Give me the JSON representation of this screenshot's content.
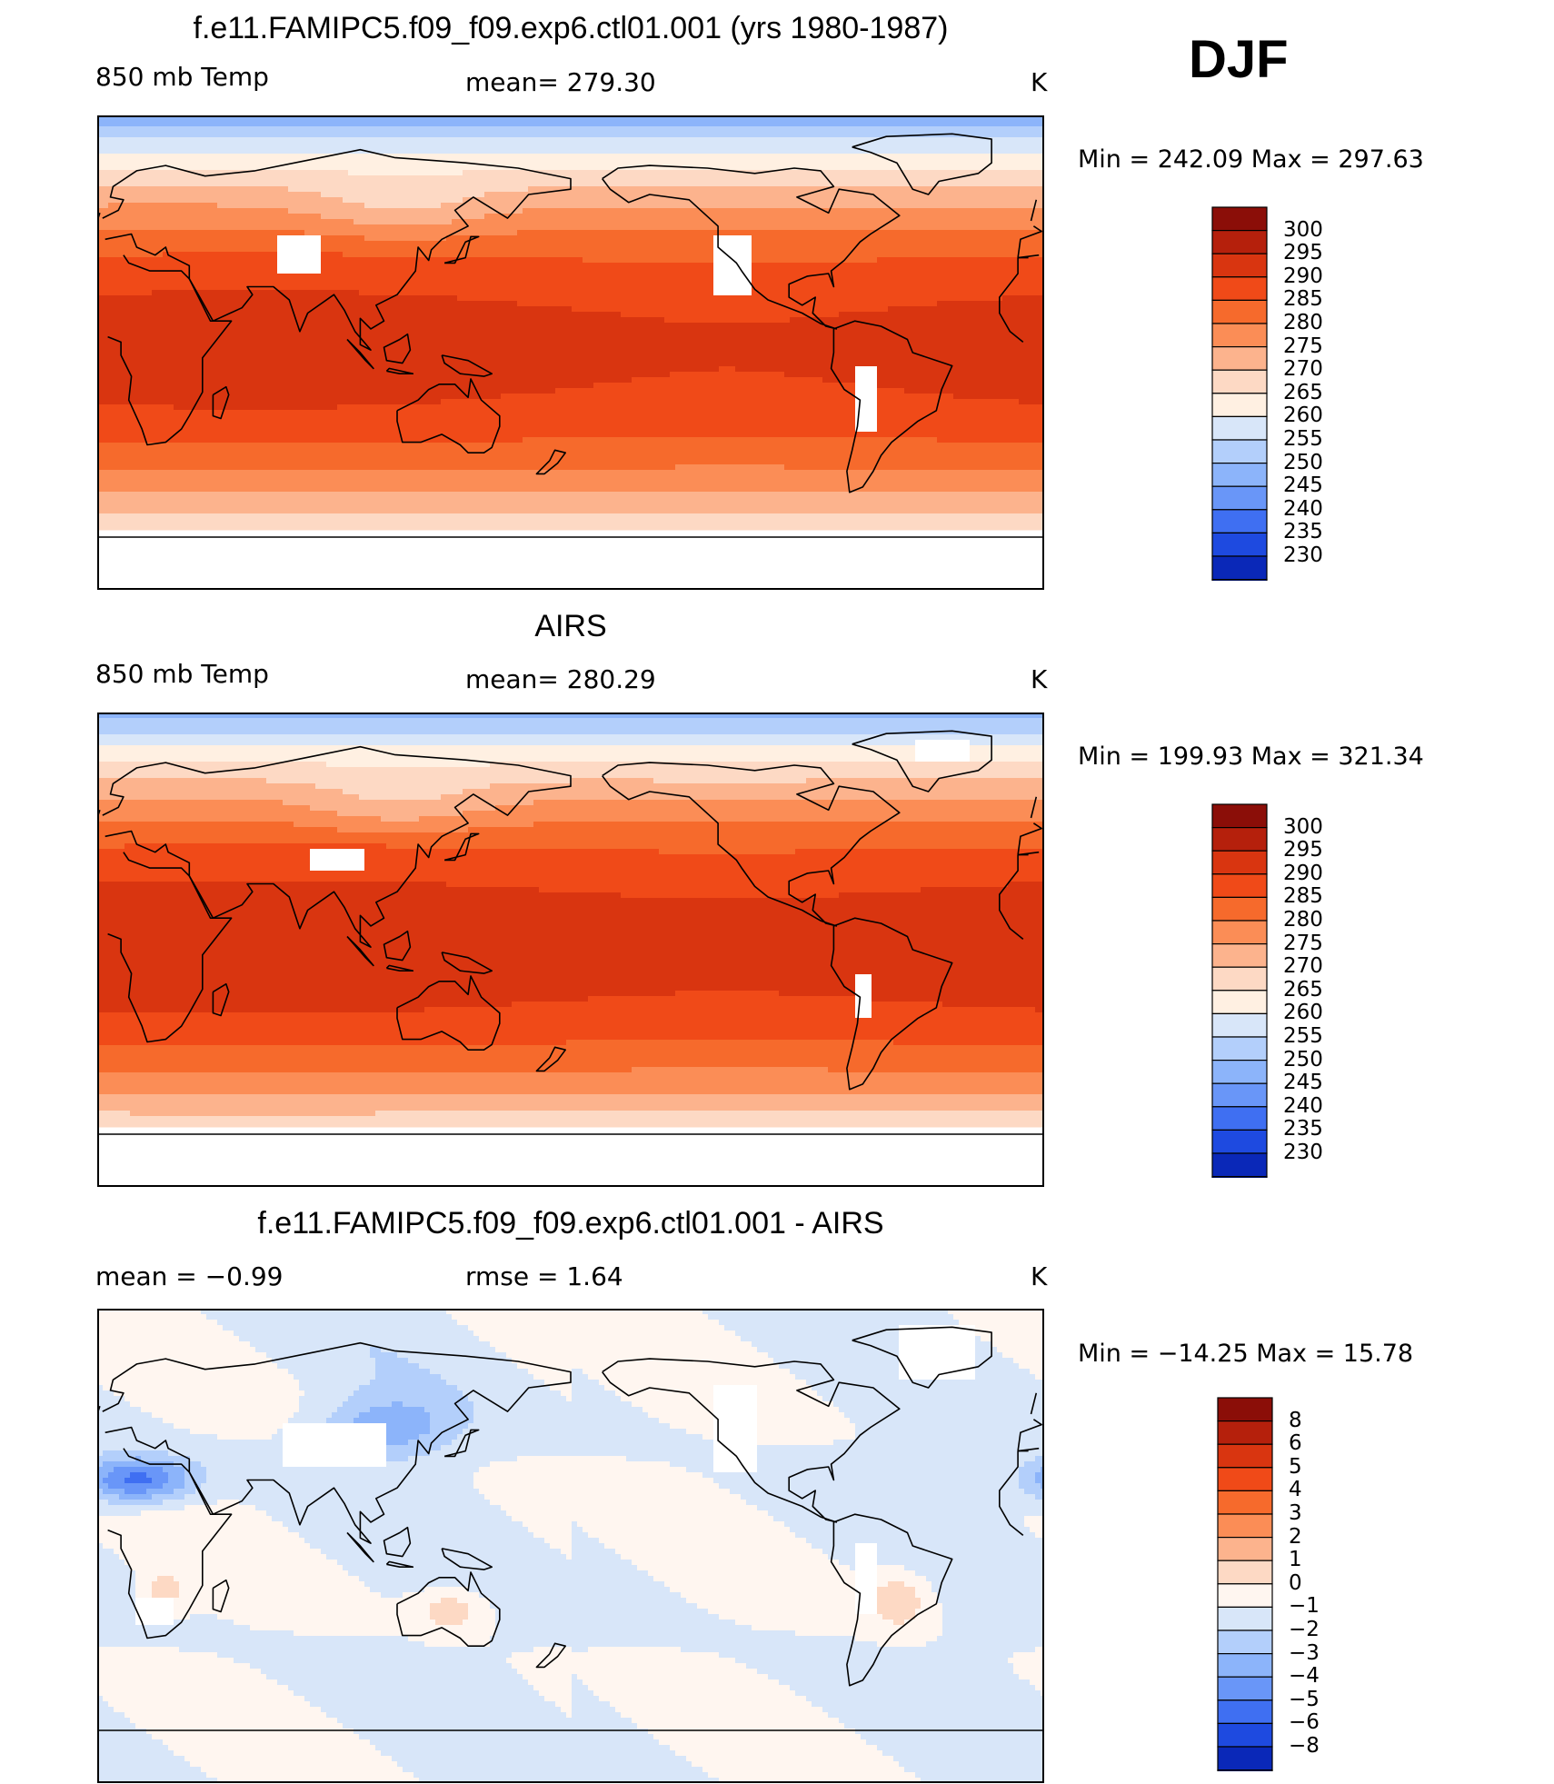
{
  "season": "DJF",
  "panels": [
    {
      "title": "f.e11.FAMIPC5.f09_f09.exp6.ctl01.001 (yrs 1980-1987)",
      "left": "850 mb Temp",
      "center": "mean= 279.30",
      "right": "K",
      "minmax": "Min  =  242.09  Max  =  297.63"
    },
    {
      "title": "AIRS",
      "left": "850 mb Temp",
      "center": "mean= 280.29",
      "right": "K",
      "minmax": "Min  =  199.93  Max  =  321.34"
    },
    {
      "title": "f.e11.FAMIPC5.f09_f09.exp6.ctl01.001 - AIRS",
      "left": "mean =    −0.99",
      "center": "rmse =     1.64",
      "right": "K",
      "minmax": "Min  =  −14.25  Max  =    15.78"
    }
  ],
  "colorbars": {
    "temperature": {
      "levels": [
        "300",
        "295",
        "290",
        "285",
        "280",
        "275",
        "270",
        "265",
        "260",
        "255",
        "250",
        "245",
        "240",
        "235",
        "230"
      ],
      "colors": [
        "#8b0e08",
        "#b5200c",
        "#d93510",
        "#f04a18",
        "#f66a2c",
        "#fb8d56",
        "#fcb38d",
        "#fdd9c4",
        "#fff0e2",
        "#d8e6f9",
        "#b3cffb",
        "#8cb4fa",
        "#6996f8",
        "#3f6ff2",
        "#1e4ae0",
        "#0a28b8",
        "#00126e"
      ]
    },
    "difference": {
      "levels": [
        "8",
        "6",
        "5",
        "4",
        "3",
        "2",
        "1",
        "0",
        "−1",
        "−2",
        "−3",
        "−4",
        "−5",
        "−6",
        "−8"
      ],
      "colors": [
        "#8b0e08",
        "#b5200c",
        "#d93510",
        "#f04a18",
        "#f66a2c",
        "#fb8d56",
        "#fcb38d",
        "#fdd9c4",
        "#fff6f0",
        "#d8e6f9",
        "#b3cffb",
        "#8cb4fa",
        "#6996f8",
        "#3f6ff2",
        "#1e4ae0",
        "#0a28b8",
        "#00126e"
      ]
    }
  }
}
